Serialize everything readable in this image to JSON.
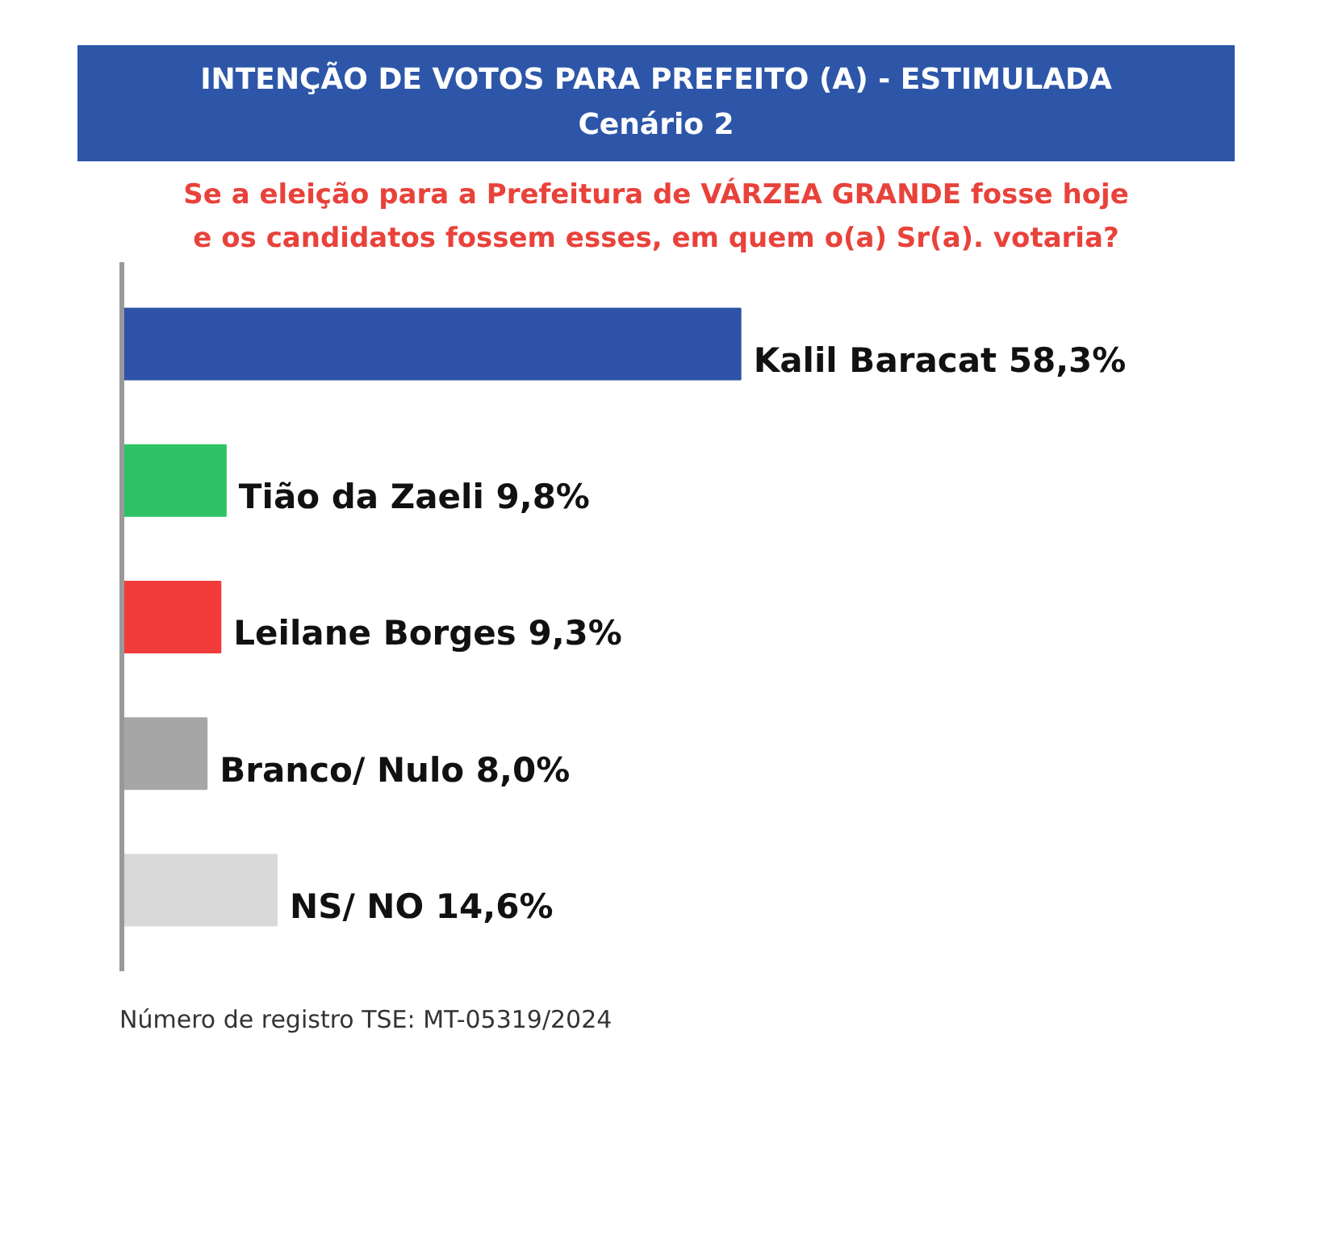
{
  "chart_data": {
    "type": "bar",
    "orientation": "horizontal",
    "title": "INTENÇÃO DE VOTOS PARA PREFEITO (A) - ESTIMULADA",
    "subtitle": "Cenário 2",
    "annotations": [
      "Se a eleição para a Prefeitura de VÁRZEA GRANDE fosse hoje e os candidatos fossem esses, em quem o(a) Sr(a). votaria?",
      "Número de registro TSE: MT-05319/2024"
    ],
    "categories": [
      null,
      null,
      null,
      null,
      null
    ],
    "values": [
      58.3,
      9.8,
      9.3,
      8.0,
      14.6
    ],
    "colors": [
      "#2f52a8",
      "#2ec266",
      "#f23b3b",
      "#a6a6a6",
      "#d9d9d9"
    ],
    "value_labels": [
      "Kalil Baracat 58,3%",
      "Tião da Zaeli 9,8%",
      "Leilane Borges 9,3%",
      "Branco/ Nulo 8,0%",
      "NS/ NO 14,6%"
    ],
    "grid": false
  }
}
